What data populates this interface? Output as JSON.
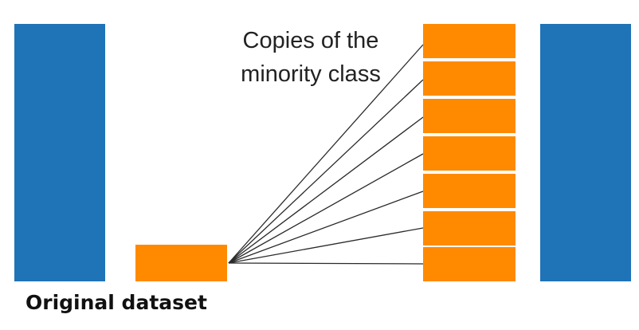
{
  "annotation": {
    "line1": "Copies of the",
    "line2": "minority class"
  },
  "caption": "Original dataset",
  "diagram": {
    "majority_class": {
      "color": "#1f73b7"
    },
    "minority_class": {
      "color": "#ff8a00"
    },
    "copies_count": 7
  }
}
